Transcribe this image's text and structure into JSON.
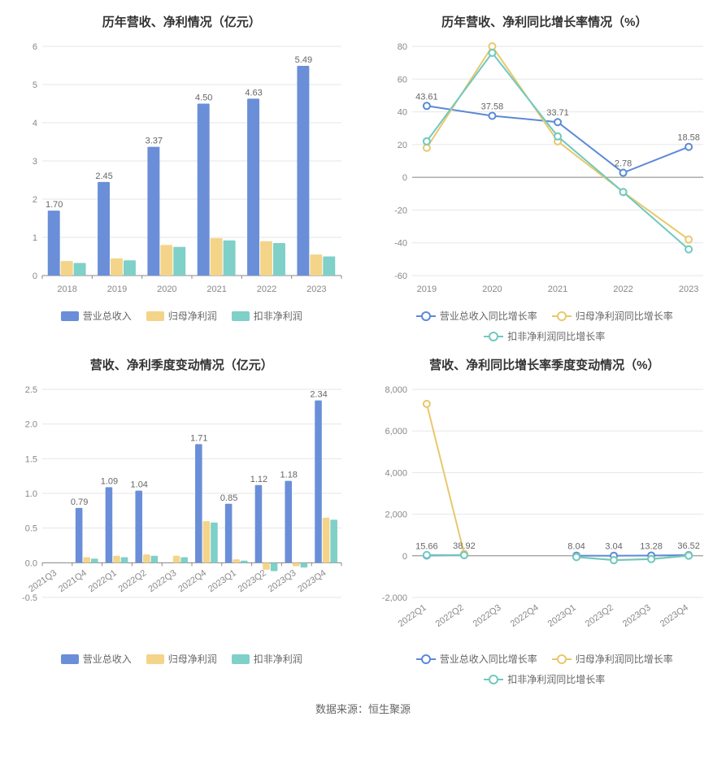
{
  "colors": {
    "blue": "#6a8fd8",
    "orange": "#f4d489",
    "teal": "#7ed0c8",
    "lineBlue": "#5b8ad6",
    "lineOrange": "#e9c86b",
    "lineTeal": "#6fc9c0",
    "gridline": "#e6e6e6",
    "axis": "#888888",
    "text": "#666666",
    "bg": "#ffffff"
  },
  "source": "数据来源：恒生聚源",
  "chart1": {
    "title": "历年营收、净利情况（亿元）",
    "type": "bar",
    "categories": [
      "2018",
      "2019",
      "2020",
      "2021",
      "2022",
      "2023"
    ],
    "ylim": [
      0,
      6
    ],
    "ytick_step": 1,
    "series": [
      {
        "name": "营业总收入",
        "colorKey": "blue",
        "values": [
          1.7,
          2.45,
          3.37,
          4.5,
          4.63,
          5.49
        ]
      },
      {
        "name": "归母净利润",
        "colorKey": "orange",
        "values": [
          0.38,
          0.45,
          0.8,
          0.98,
          0.9,
          0.55
        ]
      },
      {
        "name": "扣非净利润",
        "colorKey": "teal",
        "values": [
          0.33,
          0.4,
          0.75,
          0.92,
          0.85,
          0.5
        ]
      }
    ],
    "mainLabels": [
      "1.70",
      "2.45",
      "3.37",
      "4.50",
      "4.63",
      "5.49"
    ]
  },
  "chart2": {
    "title": "历年营收、净利同比增长率情况（%）",
    "type": "line",
    "categories": [
      "2019",
      "2020",
      "2021",
      "2022",
      "2023"
    ],
    "ylim": [
      -60,
      80
    ],
    "ytick_step": 20,
    "series": [
      {
        "name": "营业总收入同比增长率",
        "colorKey": "lineBlue",
        "values": [
          43.61,
          37.58,
          33.71,
          2.78,
          18.58
        ]
      },
      {
        "name": "归母净利润同比增长率",
        "colorKey": "lineOrange",
        "values": [
          18,
          80,
          22,
          -9,
          -38
        ]
      },
      {
        "name": "扣非净利润同比增长率",
        "colorKey": "lineTeal",
        "values": [
          22,
          76,
          25,
          -9,
          -44
        ]
      }
    ],
    "pointLabels": [
      {
        "x": 0,
        "text": "43.61"
      },
      {
        "x": 1,
        "text": "37.58"
      },
      {
        "x": 2,
        "text": "33.71"
      },
      {
        "x": 3,
        "text": "2.78"
      },
      {
        "x": 4,
        "text": "18.58"
      }
    ]
  },
  "chart3": {
    "title": "营收、净利季度变动情况（亿元）",
    "type": "bar",
    "categories": [
      "2021Q3",
      "2021Q4",
      "2022Q1",
      "2022Q2",
      "2022Q3",
      "2022Q4",
      "2023Q1",
      "2023Q2",
      "2023Q3",
      "2023Q4"
    ],
    "rotateX": true,
    "ylim": [
      -0.5,
      2.5
    ],
    "ytick_step": 0.5,
    "series": [
      {
        "name": "营业总收入",
        "colorKey": "blue",
        "values": [
          null,
          0.79,
          1.09,
          1.04,
          null,
          1.71,
          0.85,
          1.12,
          1.18,
          2.34
        ]
      },
      {
        "name": "归母净利润",
        "colorKey": "orange",
        "values": [
          null,
          0.08,
          0.1,
          0.12,
          0.1,
          0.6,
          0.05,
          -0.1,
          -0.05,
          0.65
        ]
      },
      {
        "name": "扣非净利润",
        "colorKey": "teal",
        "values": [
          null,
          0.06,
          0.08,
          0.1,
          0.08,
          0.58,
          0.03,
          -0.12,
          -0.07,
          0.62
        ]
      }
    ],
    "mainLabels": [
      null,
      "0.79",
      "1.09",
      "1.04",
      null,
      "1.71",
      "0.85",
      "1.12",
      "1.18",
      "2.34"
    ]
  },
  "chart4": {
    "title": "营收、净利同比增长率季度变动情况（%）",
    "type": "line",
    "categories": [
      "2022Q1",
      "2022Q2",
      "2022Q3",
      "2022Q4",
      "2023Q1",
      "2023Q2",
      "2023Q3",
      "2023Q4"
    ],
    "rotateX": true,
    "ylim": [
      -2000,
      8000
    ],
    "ytick_step": 2000,
    "series": [
      {
        "name": "营业总收入同比增长率",
        "colorKey": "lineBlue",
        "values": [
          15.66,
          38.92,
          null,
          null,
          8.04,
          3.04,
          13.28,
          36.52
        ]
      },
      {
        "name": "归母净利润同比增长率",
        "colorKey": "lineOrange",
        "values": [
          7300,
          100,
          null,
          null,
          -50,
          -200,
          -150,
          10
        ]
      },
      {
        "name": "扣非净利润同比增长率",
        "colorKey": "lineTeal",
        "values": [
          40,
          30,
          null,
          null,
          -60,
          -210,
          -160,
          5
        ]
      }
    ],
    "pointLabels": [
      {
        "x": 0,
        "text": "15.66"
      },
      {
        "x": 1,
        "text": "38.92"
      },
      {
        "x": 4,
        "text": "8.04"
      },
      {
        "x": 5,
        "text": "3.04"
      },
      {
        "x": 6,
        "text": "13.28"
      },
      {
        "x": 7,
        "text": "36.52"
      }
    ]
  }
}
